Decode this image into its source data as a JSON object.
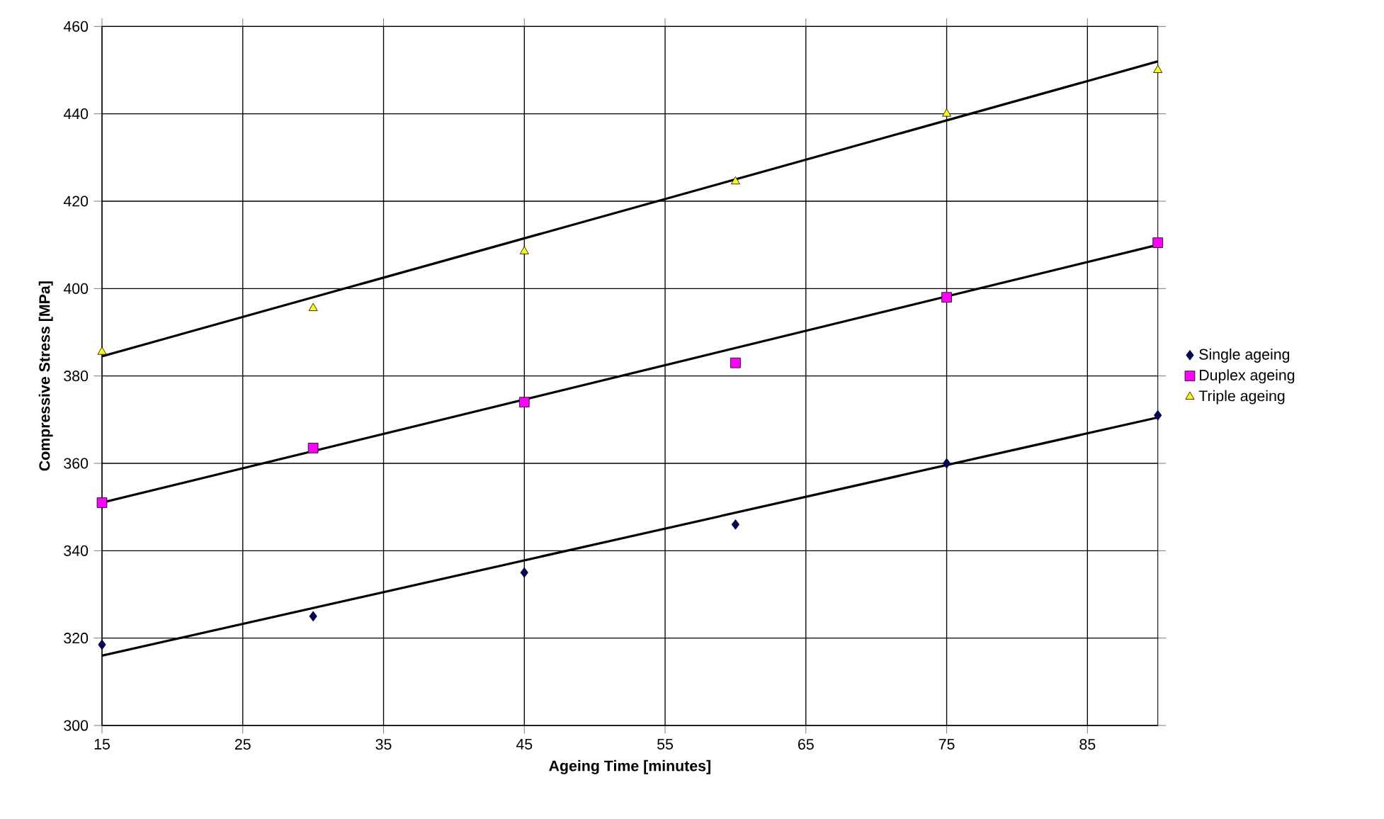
{
  "chart_data": {
    "type": "scatter",
    "xlabel": "Ageing Time [minutes]",
    "ylabel": "Compressive Stress [MPa]",
    "xlim": [
      15,
      90
    ],
    "xticks": [
      15,
      25,
      35,
      45,
      55,
      65,
      75,
      85
    ],
    "ylim": [
      300,
      460
    ],
    "yticks": [
      300,
      320,
      340,
      360,
      380,
      400,
      420,
      440,
      460
    ],
    "grid": true,
    "legend": "right",
    "series": [
      {
        "name": "Single ageing",
        "marker": "diamond",
        "color": "#000066",
        "x": [
          15,
          30,
          45,
          60,
          75,
          90
        ],
        "values": [
          318.5,
          325,
          335,
          346,
          360,
          371
        ]
      },
      {
        "name": "Duplex ageing",
        "marker": "square",
        "color": "#ff00ff",
        "x": [
          15,
          30,
          45,
          60,
          75,
          90
        ],
        "values": [
          351,
          363.5,
          374,
          383,
          398,
          410.5
        ]
      },
      {
        "name": "Triple ageing",
        "marker": "triangle",
        "color": "#ffff00",
        "x": [
          15,
          30,
          45,
          60,
          75,
          90
        ],
        "values": [
          385.5,
          395.5,
          408.5,
          424.5,
          440,
          450
        ]
      },
      {
        "type": "line",
        "color": "#000000",
        "marker": "none",
        "x": [
          15,
          90
        ],
        "values": [
          316,
          370.5
        ]
      },
      {
        "type": "line",
        "color": "#000000",
        "marker": "none",
        "x": [
          15,
          90
        ],
        "values": [
          351,
          410
        ]
      },
      {
        "type": "line",
        "color": "#000000",
        "marker": "none",
        "x": [
          15,
          90
        ],
        "values": [
          384.5,
          452
        ]
      }
    ]
  }
}
